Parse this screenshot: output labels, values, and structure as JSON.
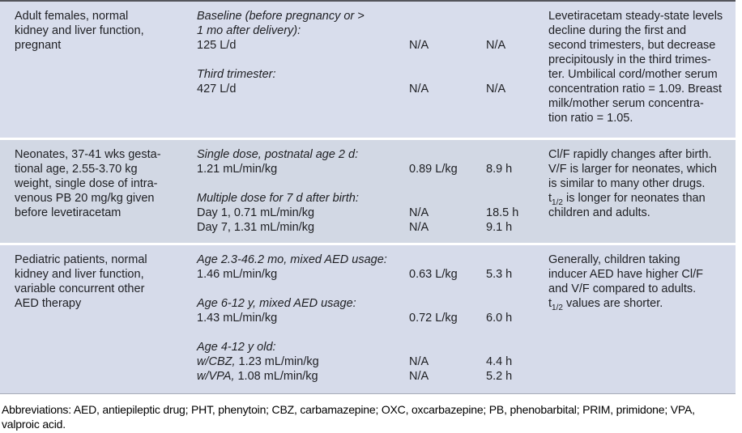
{
  "colors": {
    "row_backgrounds": [
      "#d8ddec",
      "#d2d8e4",
      "#d6dbea"
    ],
    "top_rule": "#54555b",
    "table_bottom_rule": "#a6abb8",
    "text": "#1e1f23",
    "page_background": "#ffffff"
  },
  "table": {
    "rows": [
      {
        "bg": "#d8ddec",
        "population_lines": [
          "Adult females, normal",
          "kidney and liver function,",
          "pregnant"
        ],
        "groups": [
          {
            "label_lines": [
              "Baseline (before pregnancy or >",
              "1 mo after delivery):"
            ],
            "entries": [
              {
                "cl": "125 L/d",
                "v": "N/A",
                "t": "N/A"
              }
            ]
          },
          {
            "label_lines": [
              "Third trimester:"
            ],
            "entries": [
              {
                "cl": "427 L/d",
                "v": "N/A",
                "t": "N/A"
              }
            ]
          }
        ],
        "comment_lines": [
          "Levetiracetam steady-state levels",
          "decline during the first and",
          "second trimesters, but decrease",
          "precipitously in the third trimes-",
          "ter. Umbilical cord/mother serum",
          "concentration ratio = 1.09. Breast",
          "milk/mother serum concentra-",
          "tion ratio = 1.05."
        ]
      },
      {
        "bg": "#d2d8e4",
        "population_lines": [
          "Neonates, 37-41 wks gesta-",
          "tional age, 2.55-3.70 kg",
          "weight, single dose of intra-",
          "venous PB 20 mg/kg given",
          "before levetiracetam"
        ],
        "groups": [
          {
            "label_lines": [
              "Single dose, postnatal age 2 d:"
            ],
            "entries": [
              {
                "cl": "1.21 mL/min/kg",
                "v": "0.89 L/kg",
                "t": "8.9 h"
              }
            ]
          },
          {
            "label_lines": [
              "Multiple dose for 7 d after birth:"
            ],
            "entries": [
              {
                "cl": "Day 1, 0.71 mL/min/kg",
                "v": "N/A",
                "t": "18.5 h"
              },
              {
                "cl": "Day 7, 1.31 mL/min/kg",
                "v": "N/A",
                "t": "9.1 h"
              }
            ]
          }
        ],
        "comment_lines": [
          "Cl/F rapidly changes after birth.",
          "V/F is larger for neonates, which",
          "is similar to many other drugs.",
          "t{1/2} is longer for neonates than",
          "children and adults."
        ]
      },
      {
        "bg": "#d6dbea",
        "population_lines": [
          "Pediatric patients, normal",
          "kidney and liver function,",
          "variable concurrent other",
          "AED therapy"
        ],
        "groups": [
          {
            "label_lines": [
              "Age 2.3-46.2 mo, mixed AED usage:"
            ],
            "entries": [
              {
                "cl": "1.46 mL/min/kg",
                "v": "0.63 L/kg",
                "t": "5.3 h"
              }
            ]
          },
          {
            "label_lines": [
              "Age 6-12 y, mixed AED usage:"
            ],
            "entries": [
              {
                "cl": "1.43 mL/min/kg",
                "v": "0.72 L/kg",
                "t": "6.0 h"
              }
            ]
          },
          {
            "label_lines": [
              "Age 4-12 y old:"
            ],
            "entries": [
              {
                "cl_italic": "w/CBZ,",
                "cl": " 1.23 mL/min/kg",
                "v": "N/A",
                "t": "4.4 h"
              },
              {
                "cl_italic": "w/VPA,",
                "cl": " 1.08 mL/min/kg",
                "v": "N/A",
                "t": "5.2 h"
              }
            ]
          }
        ],
        "comment_lines": [
          "Generally, children taking",
          "inducer AED have higher Cl/F",
          "and V/F compared to adults.",
          "t{1/2} values are shorter."
        ]
      }
    ]
  },
  "footnote": {
    "text": "Abbreviations: AED, antiepileptic drug; PHT, phenytoin; CBZ, carbamazepine; OXC, oxcarbazepine; PB, phenobarbital; PRIM, primidone; VPA, valproic acid."
  }
}
